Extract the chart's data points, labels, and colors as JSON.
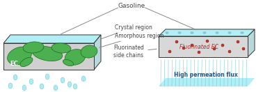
{
  "title": "Gasoline",
  "label_crystal": "Crystal region",
  "label_amorphous": "Amorphous region",
  "label_fluorinated": "Fluorinated\nside chains",
  "label_ec": "EC",
  "label_fec": "Fluorinated EC",
  "label_fec_sub": "x",
  "label_flux": "High permeation flux",
  "bg_color": "#ffffff",
  "cyan_light": "#b2eef5",
  "cyan_top": "#c8f2f8",
  "cyan_drop": "#a0e8f0",
  "green_fill": "#4caf50",
  "gray_membrane": "#d0d0d0",
  "gray_membrane2": "#d8d8d8",
  "dark_outline": "#333333",
  "side_face": "#b8d8dc",
  "red_dot": "#c0392b",
  "gray_dot": "#8ab8c2",
  "text_color": "#444444",
  "arrow_color": "#888888",
  "flux_line_color": "#60c8d8",
  "flux_text_color": "#225588",
  "fec_text_color": "#cc2222"
}
